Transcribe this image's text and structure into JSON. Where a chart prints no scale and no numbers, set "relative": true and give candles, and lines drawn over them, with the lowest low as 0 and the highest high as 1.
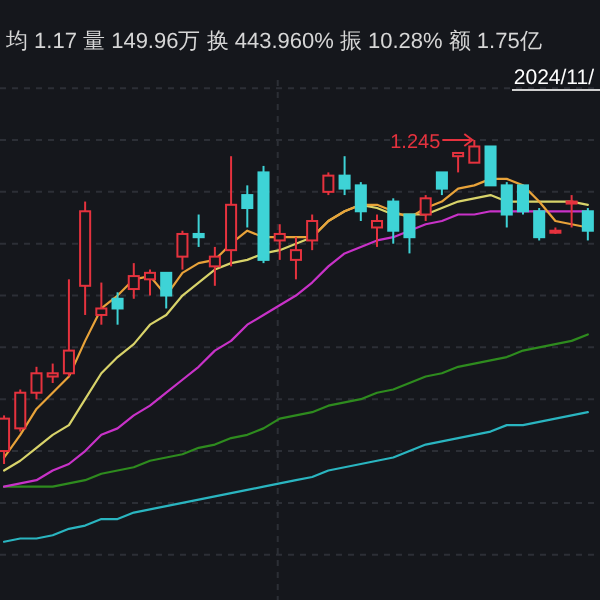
{
  "chart_data": {
    "type": "candlestick",
    "relative": true,
    "grid": true,
    "categories": [
      null,
      null,
      null,
      null,
      null,
      null,
      null,
      null,
      null,
      null,
      null,
      null,
      null,
      null,
      null,
      null,
      null,
      null,
      null,
      null,
      null,
      null,
      null,
      null,
      null,
      null,
      null,
      null,
      null,
      null,
      null,
      null,
      null,
      null,
      null,
      null,
      null
    ],
    "ohlc": [
      [
        0.04,
        0.15,
        0,
        0.14
      ],
      [
        0.11,
        0.23,
        0.1,
        0.22
      ],
      [
        0.22,
        0.3,
        0.2,
        0.28
      ],
      [
        0.27,
        0.31,
        0.25,
        0.28
      ],
      [
        0.28,
        0.57,
        0.27,
        0.35
      ],
      [
        0.55,
        0.81,
        0.46,
        0.78
      ],
      [
        0.46,
        0.56,
        0.43,
        0.48
      ],
      [
        0.51,
        0.53,
        0.43,
        0.48
      ],
      [
        0.54,
        0.62,
        0.51,
        0.58
      ],
      [
        0.57,
        0.6,
        0.52,
        0.59
      ],
      [
        0.59,
        0.59,
        0.48,
        0.52
      ],
      [
        0.64,
        0.72,
        0.6,
        0.71
      ],
      [
        0.71,
        0.77,
        0.67,
        0.7
      ],
      [
        0.61,
        0.67,
        0.55,
        0.64
      ],
      [
        0.66,
        0.95,
        0.61,
        0.8
      ],
      [
        0.83,
        0.86,
        0.73,
        0.79
      ],
      [
        0.9,
        0.92,
        0.62,
        0.63
      ],
      [
        0.69,
        0.74,
        0.63,
        0.71
      ],
      [
        0.63,
        0.7,
        0.57,
        0.66
      ],
      [
        0.69,
        0.77,
        0.66,
        0.75
      ],
      [
        0.84,
        0.9,
        0.83,
        0.89
      ],
      [
        0.89,
        0.95,
        0.83,
        0.85
      ],
      [
        0.86,
        0.87,
        0.75,
        0.78
      ],
      [
        0.73,
        0.77,
        0.67,
        0.75
      ],
      [
        0.81,
        0.82,
        0.68,
        0.72
      ],
      [
        0.77,
        0.77,
        0.65,
        0.7
      ],
      [
        0.77,
        0.83,
        0.75,
        0.82
      ],
      [
        0.9,
        0.9,
        0.83,
        0.85
      ],
      [
        0.95,
        0.96,
        0.9,
        0.96
      ],
      [
        0.93,
        1,
        0.93,
        0.98
      ],
      [
        0.98,
        0.98,
        0.86,
        0.86
      ],
      [
        0.86,
        0.87,
        0.73,
        0.77
      ],
      [
        0.86,
        0.86,
        0.77,
        0.78
      ],
      [
        0.78,
        0.79,
        0.69,
        0.7
      ],
      [
        0.72,
        0.73,
        0.71,
        0.72
      ],
      [
        0.81,
        0.83,
        0.73,
        0.81
      ],
      [
        0.78,
        0.79,
        0.69,
        0.72
      ]
    ],
    "colors": [
      "#e5323e",
      "#e5323e",
      "#e5323e",
      "#e5323e",
      "#e5323e",
      "#e5323e",
      "#e5323e",
      "#3ed3d6",
      "#e5323e",
      "#e5323e",
      "#3ed3d6",
      "#e5323e",
      "#3ed3d6",
      "#e5323e",
      "#e5323e",
      "#3ed3d6",
      "#3ed3d6",
      "#e5323e",
      "#e5323e",
      "#e5323e",
      "#e5323e",
      "#3ed3d6",
      "#3ed3d6",
      "#e5323e",
      "#3ed3d6",
      "#3ed3d6",
      "#e5323e",
      "#3ed3d6",
      "#e5323e",
      "#e5323e",
      "#3ed3d6",
      "#3ed3d6",
      "#3ed3d6",
      "#3ed3d6",
      "#e5323e",
      "#e5323e",
      "#3ed3d6"
    ],
    "series": [
      {
        "type": "line",
        "color": "#2ab5c0",
        "values": [
          -0.24,
          -0.23,
          -0.23,
          -0.22,
          -0.2,
          -0.19,
          -0.17,
          -0.17,
          -0.15,
          -0.14,
          -0.13,
          -0.12,
          -0.11,
          -0.1,
          -0.09,
          -0.08,
          -0.07,
          -0.06,
          -0.05,
          -0.04,
          -0.02,
          -0.01,
          0,
          0.01,
          0.02,
          0.04,
          0.06,
          0.07,
          0.08,
          0.09,
          0.1,
          0.12,
          0.12,
          0.13,
          0.14,
          0.15,
          0.16
        ]
      },
      {
        "type": "line",
        "color": "#2e8b1e",
        "values": [
          -0.07,
          -0.07,
          -0.07,
          -0.07,
          -0.06,
          -0.05,
          -0.03,
          -0.02,
          -0.01,
          0.01,
          0.02,
          0.03,
          0.05,
          0.06,
          0.08,
          0.09,
          0.11,
          0.14,
          0.15,
          0.16,
          0.18,
          0.19,
          0.2,
          0.22,
          0.23,
          0.25,
          0.27,
          0.28,
          0.3,
          0.31,
          0.32,
          0.33,
          0.35,
          0.36,
          0.37,
          0.38,
          0.4
        ]
      },
      {
        "type": "line",
        "color": "#c832c8",
        "values": [
          -0.07,
          -0.06,
          -0.05,
          -0.02,
          0,
          0.04,
          0.09,
          0.11,
          0.15,
          0.18,
          0.22,
          0.26,
          0.3,
          0.35,
          0.38,
          0.43,
          0.46,
          0.49,
          0.52,
          0.56,
          0.61,
          0.65,
          0.67,
          0.69,
          0.7,
          0.72,
          0.74,
          0.75,
          0.77,
          0.77,
          0.78,
          0.78,
          0.78,
          0.78,
          0.78,
          0.78,
          0.78
        ]
      },
      {
        "type": "line",
        "color": "#d8d36a",
        "values": [
          -0.02,
          0.01,
          0.05,
          0.09,
          0.12,
          0.2,
          0.28,
          0.33,
          0.37,
          0.43,
          0.46,
          0.52,
          0.56,
          0.6,
          0.62,
          0.63,
          0.65,
          0.66,
          0.68,
          0.7,
          0.75,
          0.78,
          0.8,
          0.79,
          0.77,
          0.77,
          0.77,
          0.79,
          0.81,
          0.82,
          0.83,
          0.81,
          0.81,
          0.81,
          0.81,
          0.81,
          0.8
        ]
      },
      {
        "type": "line",
        "color": "#e8a33a",
        "values": [
          0.02,
          0.09,
          0.17,
          0.22,
          0.27,
          0.38,
          0.48,
          0.52,
          0.57,
          0.58,
          0.52,
          0.59,
          0.62,
          0.63,
          0.68,
          0.72,
          0.7,
          0.7,
          0.7,
          0.7,
          0.75,
          0.78,
          0.8,
          0.8,
          0.78,
          0.76,
          0.79,
          0.81,
          0.85,
          0.86,
          0.88,
          0.88,
          0.86,
          0.81,
          0.75,
          0.74,
          0.73
        ]
      }
    ],
    "annotations": [
      "均 1.17 量 149.96万 换 443.960% 振 10.28% 额 1.75亿",
      "2024/11/",
      "1.245"
    ]
  }
}
